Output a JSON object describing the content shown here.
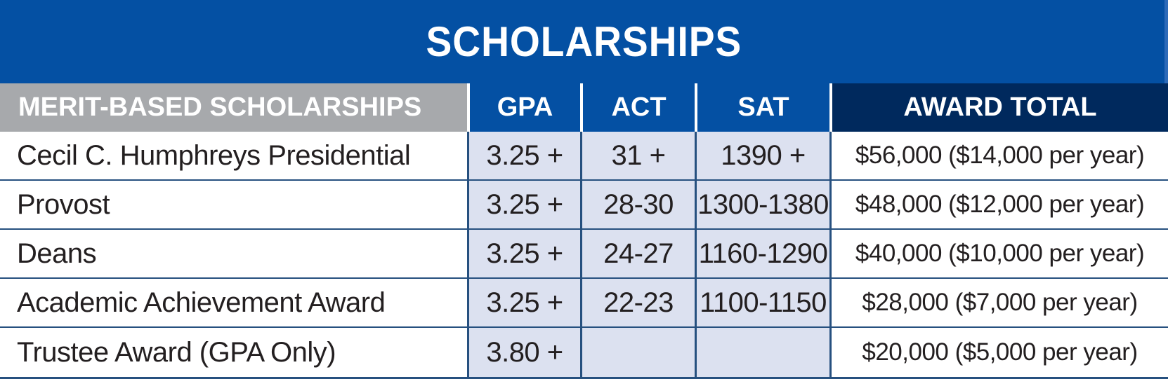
{
  "title": "SCHOLARSHIPS",
  "colors": {
    "band_blue": "#0450a3",
    "header_gray": "#a7a9ac",
    "award_navy": "#00295d",
    "value_cell_blue": "#dce1f0",
    "grid_border_blue": "#26507f",
    "text_dark": "#231f20",
    "text_white": "#ffffff"
  },
  "table": {
    "header": {
      "name": "MERIT-BASED SCHOLARSHIPS",
      "gpa": "GPA",
      "act": "ACT",
      "sat": "SAT",
      "award": "AWARD TOTAL"
    },
    "rows": [
      {
        "name": "Cecil C. Humphreys Presidential",
        "gpa": "3.25 +",
        "act": "31 +",
        "sat": "1390 +",
        "award": "$56,000 ($14,000 per year)"
      },
      {
        "name": "Provost",
        "gpa": "3.25 +",
        "act": "28-30",
        "sat": "1300-1380",
        "award": "$48,000 ($12,000 per year)"
      },
      {
        "name": "Deans",
        "gpa": "3.25 +",
        "act": "24-27",
        "sat": "1160-1290",
        "award": "$40,000 ($10,000 per year)"
      },
      {
        "name": "Academic Achievement Award",
        "gpa": "3.25 +",
        "act": "22-23",
        "sat": "1100-1150",
        "award": "$28,000 ($7,000 per year)"
      },
      {
        "name": "Trustee Award (GPA Only)",
        "gpa": "3.80 +",
        "act": "",
        "sat": "",
        "award": "$20,000 ($5,000 per year)"
      }
    ]
  },
  "chart_data": {
    "type": "table",
    "title": "SCHOLARSHIPS",
    "columns": [
      "MERIT-BASED SCHOLARSHIPS",
      "GPA",
      "ACT",
      "SAT",
      "AWARD TOTAL"
    ],
    "rows": [
      [
        "Cecil C. Humphreys Presidential",
        "3.25 +",
        "31 +",
        "1390 +",
        "$56,000 ($14,000 per year)"
      ],
      [
        "Provost",
        "3.25 +",
        "28-30",
        "1300-1380",
        "$48,000 ($12,000 per year)"
      ],
      [
        "Deans",
        "3.25 +",
        "24-27",
        "1160-1290",
        "$40,000 ($10,000 per year)"
      ],
      [
        "Academic Achievement Award",
        "3.25 +",
        "22-23",
        "1100-1150",
        "$28,000 ($7,000 per year)"
      ],
      [
        "Trustee Award (GPA Only)",
        "3.80 +",
        "",
        "",
        "$20,000 ($5,000 per year)"
      ]
    ],
    "annual_award_values": [
      14000,
      12000,
      10000,
      7000,
      5000
    ],
    "total_award_values": [
      56000,
      48000,
      40000,
      28000,
      20000
    ]
  }
}
